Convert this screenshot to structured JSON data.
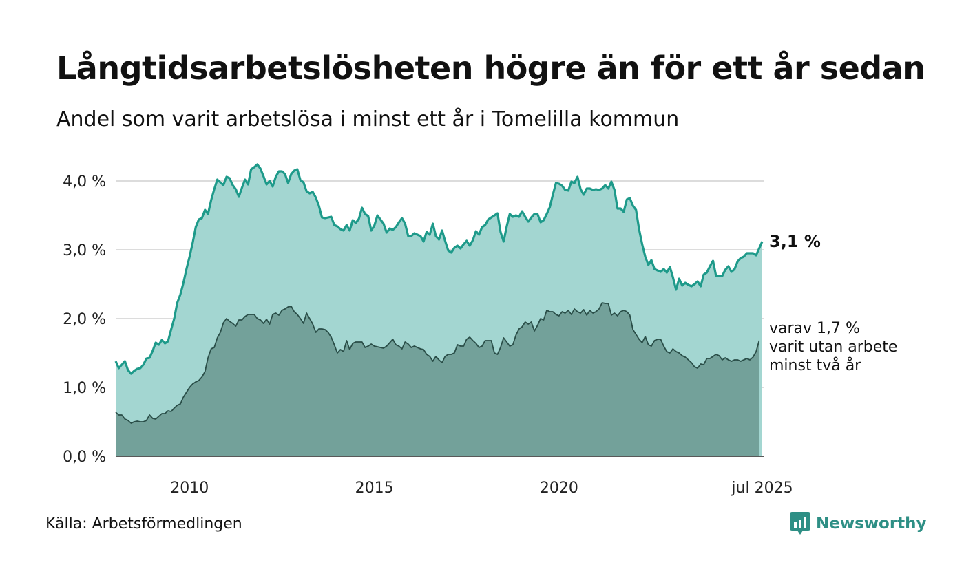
{
  "title": "Långtidsarbetslösheten högre än för ett år sedan",
  "subtitle": "Andel som varit arbetslösa i minst ett år i Tomelilla kommun",
  "source": "Källa: Arbetsförmedlingen",
  "logo": {
    "text": "Newsworthy",
    "icon": "newsworthy-logo-icon",
    "color": "#2e8f85"
  },
  "chart_data": {
    "type": "area",
    "x_start": 2008.0,
    "x_step": 0.0833333,
    "x_end_label_value": 2025.5,
    "ylim": [
      0,
      4.4
    ],
    "yticks": [
      0,
      1,
      2,
      3,
      4
    ],
    "ytick_labels": [
      "0,0 %",
      "1,0 %",
      "2,0 %",
      "3,0 %",
      "4,0 %"
    ],
    "xticks": [
      2010,
      2015,
      2020,
      2025.5
    ],
    "xtick_labels": [
      "2010",
      "2015",
      "2020",
      "jul 2025"
    ],
    "grid": true,
    "series": [
      {
        "label_text": "3,1 %",
        "line_color": "#1e9a8a",
        "fill_color": "#a3d6d1",
        "values": [
          1.38,
          1.28,
          1.33,
          1.38,
          1.25,
          1.2,
          1.24,
          1.27,
          1.28,
          1.33,
          1.42,
          1.43,
          1.53,
          1.65,
          1.62,
          1.69,
          1.64,
          1.67,
          1.84,
          2.0,
          2.23,
          2.35,
          2.52,
          2.72,
          2.9,
          3.1,
          3.33,
          3.44,
          3.46,
          3.58,
          3.52,
          3.72,
          3.88,
          4.02,
          3.98,
          3.94,
          4.06,
          4.04,
          3.94,
          3.88,
          3.77,
          3.9,
          4.02,
          3.95,
          4.17,
          4.2,
          4.24,
          4.18,
          4.07,
          3.95,
          4.0,
          3.92,
          4.06,
          4.14,
          4.14,
          4.1,
          3.97,
          4.1,
          4.15,
          4.17,
          4.01,
          3.98,
          3.85,
          3.82,
          3.84,
          3.76,
          3.64,
          3.47,
          3.46,
          3.47,
          3.48,
          3.36,
          3.34,
          3.3,
          3.28,
          3.36,
          3.28,
          3.43,
          3.39,
          3.45,
          3.61,
          3.52,
          3.49,
          3.28,
          3.35,
          3.5,
          3.44,
          3.38,
          3.25,
          3.31,
          3.29,
          3.33,
          3.4,
          3.46,
          3.38,
          3.2,
          3.2,
          3.24,
          3.22,
          3.2,
          3.12,
          3.26,
          3.22,
          3.38,
          3.2,
          3.15,
          3.28,
          3.13,
          2.99,
          2.96,
          3.03,
          3.06,
          3.02,
          3.08,
          3.13,
          3.06,
          3.14,
          3.27,
          3.22,
          3.33,
          3.36,
          3.44,
          3.47,
          3.5,
          3.53,
          3.26,
          3.12,
          3.34,
          3.52,
          3.48,
          3.5,
          3.48,
          3.56,
          3.48,
          3.41,
          3.47,
          3.52,
          3.52,
          3.4,
          3.43,
          3.52,
          3.62,
          3.8,
          3.97,
          3.96,
          3.93,
          3.87,
          3.86,
          3.99,
          3.97,
          4.06,
          3.88,
          3.8,
          3.89,
          3.89,
          3.87,
          3.88,
          3.87,
          3.89,
          3.94,
          3.89,
          3.99,
          3.87,
          3.6,
          3.6,
          3.55,
          3.73,
          3.75,
          3.64,
          3.58,
          3.3,
          3.08,
          2.9,
          2.78,
          2.85,
          2.72,
          2.7,
          2.68,
          2.72,
          2.67,
          2.75,
          2.6,
          2.42,
          2.58,
          2.48,
          2.52,
          2.49,
          2.47,
          2.5,
          2.54,
          2.47,
          2.64,
          2.67,
          2.76,
          2.84,
          2.62,
          2.62,
          2.62,
          2.71,
          2.76,
          2.68,
          2.72,
          2.83,
          2.88,
          2.9,
          2.95,
          2.95,
          2.95,
          2.92,
          3.02,
          3.12
        ]
      },
      {
        "label_lines": [
          "varav 1,7 %",
          "varit utan arbete",
          "minst två år"
        ],
        "line_color": "#2a4e48",
        "fill_color": "#73a19a",
        "values": [
          0.64,
          0.6,
          0.6,
          0.54,
          0.52,
          0.48,
          0.5,
          0.51,
          0.5,
          0.5,
          0.52,
          0.6,
          0.55,
          0.54,
          0.58,
          0.62,
          0.62,
          0.66,
          0.65,
          0.7,
          0.74,
          0.76,
          0.86,
          0.93,
          1.0,
          1.05,
          1.08,
          1.1,
          1.15,
          1.23,
          1.43,
          1.56,
          1.58,
          1.72,
          1.8,
          1.94,
          2.0,
          1.96,
          1.93,
          1.89,
          1.98,
          1.98,
          2.03,
          2.06,
          2.06,
          2.06,
          2.0,
          1.98,
          1.93,
          1.99,
          1.92,
          2.06,
          2.08,
          2.05,
          2.12,
          2.14,
          2.17,
          2.18,
          2.1,
          2.06,
          2.0,
          1.93,
          2.08,
          2.0,
          1.92,
          1.8,
          1.85,
          1.85,
          1.84,
          1.8,
          1.73,
          1.62,
          1.5,
          1.55,
          1.52,
          1.68,
          1.55,
          1.64,
          1.66,
          1.66,
          1.66,
          1.58,
          1.6,
          1.63,
          1.6,
          1.59,
          1.58,
          1.57,
          1.6,
          1.65,
          1.7,
          1.62,
          1.6,
          1.56,
          1.66,
          1.63,
          1.58,
          1.6,
          1.58,
          1.56,
          1.55,
          1.48,
          1.45,
          1.38,
          1.45,
          1.4,
          1.36,
          1.45,
          1.48,
          1.48,
          1.5,
          1.62,
          1.6,
          1.6,
          1.7,
          1.73,
          1.68,
          1.64,
          1.58,
          1.6,
          1.68,
          1.68,
          1.68,
          1.5,
          1.48,
          1.58,
          1.72,
          1.66,
          1.6,
          1.62,
          1.76,
          1.85,
          1.88,
          1.95,
          1.92,
          1.95,
          1.82,
          1.9,
          2.0,
          1.98,
          2.12,
          2.1,
          2.1,
          2.06,
          2.04,
          2.1,
          2.08,
          2.12,
          2.06,
          2.14,
          2.1,
          2.08,
          2.13,
          2.05,
          2.12,
          2.08,
          2.1,
          2.14,
          2.23,
          2.22,
          2.22,
          2.05,
          2.08,
          2.04,
          2.1,
          2.12,
          2.1,
          2.05,
          1.84,
          1.77,
          1.7,
          1.65,
          1.74,
          1.62,
          1.6,
          1.68,
          1.7,
          1.7,
          1.6,
          1.52,
          1.5,
          1.56,
          1.52,
          1.5,
          1.46,
          1.44,
          1.4,
          1.36,
          1.3,
          1.28,
          1.34,
          1.33,
          1.42,
          1.42,
          1.45,
          1.48,
          1.46,
          1.4,
          1.43,
          1.4,
          1.38,
          1.4,
          1.4,
          1.38,
          1.4,
          1.42,
          1.4,
          1.44,
          1.52,
          1.68
        ]
      }
    ]
  }
}
